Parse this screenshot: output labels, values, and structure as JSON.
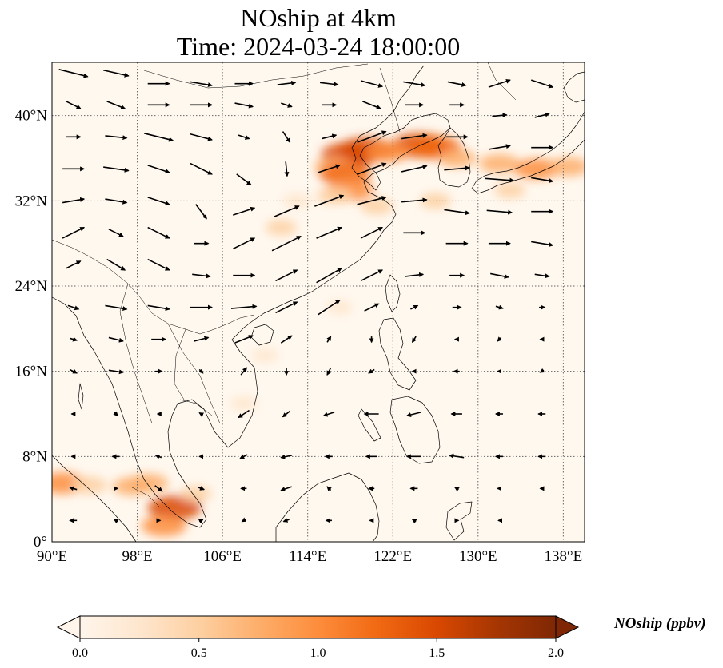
{
  "title": {
    "line1": "NOship at 4km",
    "line2": "Time: 2024-03-24 18:00:00"
  },
  "map": {
    "extent": {
      "lon_min": 90,
      "lon_max": 140,
      "lat_min": 0,
      "lat_max": 45
    },
    "lat_ticks": [
      {
        "value": 0,
        "label": "0°"
      },
      {
        "value": 8,
        "label": "8°N"
      },
      {
        "value": 16,
        "label": "16°N"
      },
      {
        "value": 24,
        "label": "24°N"
      },
      {
        "value": 32,
        "label": "32°N"
      },
      {
        "value": 40,
        "label": "40°N"
      }
    ],
    "lon_ticks": [
      {
        "value": 90,
        "label": "90°E"
      },
      {
        "value": 98,
        "label": "98°E"
      },
      {
        "value": 106,
        "label": "106°E"
      },
      {
        "value": 114,
        "label": "114°E"
      },
      {
        "value": 122,
        "label": "122°E"
      },
      {
        "value": 130,
        "label": "130°E"
      },
      {
        "value": 138,
        "label": "138°E"
      }
    ],
    "gridlines": "dotted",
    "background_color": "#fff8ef",
    "hotspots": [
      {
        "lon": 118.0,
        "lat": 36.3,
        "value": 1.6
      },
      {
        "lon": 119.5,
        "lat": 36.8,
        "value": 1.5
      },
      {
        "lon": 124.5,
        "lat": 37.2,
        "value": 1.5
      },
      {
        "lon": 126.0,
        "lat": 37.0,
        "value": 1.3
      },
      {
        "lon": 121.5,
        "lat": 36.6,
        "value": 1.0
      },
      {
        "lon": 128.0,
        "lat": 36.0,
        "value": 0.7
      },
      {
        "lon": 132.0,
        "lat": 35.5,
        "value": 0.8
      },
      {
        "lon": 135.5,
        "lat": 35.0,
        "value": 1.0
      },
      {
        "lon": 138.5,
        "lat": 35.2,
        "value": 0.8
      },
      {
        "lon": 116.5,
        "lat": 35.2,
        "value": 0.8
      },
      {
        "lon": 117.5,
        "lat": 34.5,
        "value": 1.3
      },
      {
        "lon": 118.0,
        "lat": 33.0,
        "value": 1.1
      },
      {
        "lon": 116.5,
        "lat": 32.5,
        "value": 0.6
      },
      {
        "lon": 113.0,
        "lat": 32.0,
        "value": 0.3
      },
      {
        "lon": 111.5,
        "lat": 29.5,
        "value": 0.4
      },
      {
        "lon": 120.5,
        "lat": 31.5,
        "value": 0.5
      },
      {
        "lon": 126.0,
        "lat": 32.0,
        "value": 0.4
      },
      {
        "lon": 133.0,
        "lat": 33.0,
        "value": 0.4
      },
      {
        "lon": 91.0,
        "lat": 5.5,
        "value": 1.1
      },
      {
        "lon": 93.5,
        "lat": 5.3,
        "value": 0.6
      },
      {
        "lon": 97.5,
        "lat": 5.2,
        "value": 0.7
      },
      {
        "lon": 99.0,
        "lat": 5.5,
        "value": 0.8
      },
      {
        "lon": 101.5,
        "lat": 3.2,
        "value": 1.4
      },
      {
        "lon": 100.5,
        "lat": 1.5,
        "value": 1.0
      },
      {
        "lon": 103.5,
        "lat": 4.5,
        "value": 0.4
      },
      {
        "lon": 108.0,
        "lat": 13.0,
        "value": 0.25
      },
      {
        "lon": 110.0,
        "lat": 17.5,
        "value": 0.2
      },
      {
        "lon": 117.0,
        "lat": 22.0,
        "value": 0.2
      }
    ],
    "wind_vectors": [
      {
        "lon": 92,
        "lat": 44,
        "u": 4,
        "v": -1
      },
      {
        "lon": 96,
        "lat": 44,
        "u": 3.5,
        "v": -0.8
      },
      {
        "lon": 100,
        "lat": 43,
        "u": 3,
        "v": 0
      },
      {
        "lon": 104,
        "lat": 43,
        "u": 3,
        "v": -0.5
      },
      {
        "lon": 108,
        "lat": 43,
        "u": 2.5,
        "v": 0
      },
      {
        "lon": 112,
        "lat": 43,
        "u": 2.5,
        "v": 0.3
      },
      {
        "lon": 116,
        "lat": 43,
        "u": 2.5,
        "v": -0.3
      },
      {
        "lon": 120,
        "lat": 43,
        "u": 3,
        "v": -0.8
      },
      {
        "lon": 124,
        "lat": 43,
        "u": 3,
        "v": -0.5
      },
      {
        "lon": 128,
        "lat": 43,
        "u": 2.5,
        "v": -0.5
      },
      {
        "lon": 132,
        "lat": 43,
        "u": 3,
        "v": 1
      },
      {
        "lon": 136,
        "lat": 43,
        "u": 3,
        "v": -1
      },
      {
        "lon": 92,
        "lat": 41,
        "u": 2,
        "v": -1
      },
      {
        "lon": 96,
        "lat": 41,
        "u": 2.5,
        "v": -1
      },
      {
        "lon": 100,
        "lat": 41,
        "u": 3,
        "v": 0
      },
      {
        "lon": 104,
        "lat": 41,
        "u": 3,
        "v": 0
      },
      {
        "lon": 108,
        "lat": 41,
        "u": 2.5,
        "v": -0.5
      },
      {
        "lon": 112,
        "lat": 41,
        "u": 1.5,
        "v": -0.5
      },
      {
        "lon": 116,
        "lat": 41,
        "u": 2,
        "v": 0
      },
      {
        "lon": 120,
        "lat": 41,
        "u": 2.5,
        "v": -1
      },
      {
        "lon": 124,
        "lat": 41,
        "u": 2.5,
        "v": 0
      },
      {
        "lon": 128,
        "lat": 41,
        "u": 2,
        "v": 0
      },
      {
        "lon": 132,
        "lat": 40,
        "u": 2,
        "v": 0.2
      },
      {
        "lon": 136,
        "lat": 40,
        "u": 2,
        "v": 0.5
      },
      {
        "lon": 92,
        "lat": 38,
        "u": 2,
        "v": 0
      },
      {
        "lon": 96,
        "lat": 38,
        "u": 3,
        "v": -0.3
      },
      {
        "lon": 100,
        "lat": 38,
        "u": 4,
        "v": -1
      },
      {
        "lon": 104,
        "lat": 38,
        "u": 3,
        "v": -0.8
      },
      {
        "lon": 108,
        "lat": 38,
        "u": 1.5,
        "v": -0.5
      },
      {
        "lon": 112,
        "lat": 38,
        "u": 1,
        "v": -1.5
      },
      {
        "lon": 116,
        "lat": 38,
        "u": 2,
        "v": 0.5
      },
      {
        "lon": 120,
        "lat": 38,
        "u": 4,
        "v": 1.5
      },
      {
        "lon": 124,
        "lat": 38,
        "u": 3.5,
        "v": 0.5
      },
      {
        "lon": 128,
        "lat": 38,
        "u": 3,
        "v": 0
      },
      {
        "lon": 132,
        "lat": 37,
        "u": 3,
        "v": 0.5
      },
      {
        "lon": 136,
        "lat": 37,
        "u": 3,
        "v": 0
      },
      {
        "lon": 92,
        "lat": 35,
        "u": 3,
        "v": 0
      },
      {
        "lon": 96,
        "lat": 35,
        "u": 3.5,
        "v": -0.5
      },
      {
        "lon": 100,
        "lat": 35,
        "u": 3,
        "v": -1
      },
      {
        "lon": 104,
        "lat": 35,
        "u": 3,
        "v": -1.5
      },
      {
        "lon": 108,
        "lat": 34,
        "u": 2,
        "v": -1.5
      },
      {
        "lon": 112,
        "lat": 35,
        "u": 0.2,
        "v": -2
      },
      {
        "lon": 116,
        "lat": 35,
        "u": 3,
        "v": 1
      },
      {
        "lon": 120,
        "lat": 35,
        "u": 4,
        "v": 1.5
      },
      {
        "lon": 124,
        "lat": 35,
        "u": 3.5,
        "v": 0.8
      },
      {
        "lon": 128,
        "lat": 35,
        "u": 3.5,
        "v": 0.3
      },
      {
        "lon": 132,
        "lat": 34,
        "u": 4,
        "v": -0.3
      },
      {
        "lon": 136,
        "lat": 34,
        "u": 3,
        "v": -0.5
      },
      {
        "lon": 92,
        "lat": 32,
        "u": 3,
        "v": 0.5
      },
      {
        "lon": 96,
        "lat": 32,
        "u": 3,
        "v": -0.5
      },
      {
        "lon": 100,
        "lat": 32,
        "u": 3,
        "v": -1
      },
      {
        "lon": 104,
        "lat": 31,
        "u": 1.5,
        "v": -2
      },
      {
        "lon": 108,
        "lat": 31,
        "u": 3,
        "v": 1
      },
      {
        "lon": 112,
        "lat": 31,
        "u": 3.5,
        "v": 1.5
      },
      {
        "lon": 116,
        "lat": 32,
        "u": 4,
        "v": 1.5
      },
      {
        "lon": 120,
        "lat": 32,
        "u": 4,
        "v": 1
      },
      {
        "lon": 124,
        "lat": 32,
        "u": 3.5,
        "v": 0.3
      },
      {
        "lon": 128,
        "lat": 31,
        "u": 3.5,
        "v": -0.5
      },
      {
        "lon": 132,
        "lat": 31,
        "u": 3.5,
        "v": -0.3
      },
      {
        "lon": 136,
        "lat": 31,
        "u": 3,
        "v": 0
      },
      {
        "lon": 92,
        "lat": 29,
        "u": 3,
        "v": 1.5
      },
      {
        "lon": 96,
        "lat": 29,
        "u": 2,
        "v": -1
      },
      {
        "lon": 100,
        "lat": 29,
        "u": 3,
        "v": -1.5
      },
      {
        "lon": 104,
        "lat": 28,
        "u": 2,
        "v": 0
      },
      {
        "lon": 108,
        "lat": 28,
        "u": 3,
        "v": 1.5
      },
      {
        "lon": 112,
        "lat": 28,
        "u": 4,
        "v": 2
      },
      {
        "lon": 116,
        "lat": 29,
        "u": 3.5,
        "v": 1.5
      },
      {
        "lon": 120,
        "lat": 29,
        "u": 3,
        "v": 1.5
      },
      {
        "lon": 124,
        "lat": 29,
        "u": 3,
        "v": 0
      },
      {
        "lon": 128,
        "lat": 28,
        "u": 3,
        "v": 0
      },
      {
        "lon": 132,
        "lat": 28,
        "u": 3,
        "v": 0
      },
      {
        "lon": 136,
        "lat": 28,
        "u": 3,
        "v": -0.5
      },
      {
        "lon": 92,
        "lat": 26,
        "u": 2,
        "v": 1
      },
      {
        "lon": 96,
        "lat": 26,
        "u": 2.5,
        "v": -1.5
      },
      {
        "lon": 100,
        "lat": 26,
        "u": 3,
        "v": -1.5
      },
      {
        "lon": 104,
        "lat": 25,
        "u": 2.5,
        "v": -0.3
      },
      {
        "lon": 108,
        "lat": 25,
        "u": 3,
        "v": 0
      },
      {
        "lon": 112,
        "lat": 25,
        "u": 3,
        "v": 1.5
      },
      {
        "lon": 116,
        "lat": 25,
        "u": 3.5,
        "v": 2
      },
      {
        "lon": 120,
        "lat": 25,
        "u": 3,
        "v": 1.5
      },
      {
        "lon": 124,
        "lat": 25,
        "u": 2.5,
        "v": 0.3
      },
      {
        "lon": 128,
        "lat": 25,
        "u": 2,
        "v": 0
      },
      {
        "lon": 132,
        "lat": 25,
        "u": 2.5,
        "v": -0.5
      },
      {
        "lon": 136,
        "lat": 25,
        "u": 2,
        "v": -0.3
      },
      {
        "lon": 92,
        "lat": 22,
        "u": 1.5,
        "v": -0.5
      },
      {
        "lon": 96,
        "lat": 22,
        "u": 3,
        "v": -0.5
      },
      {
        "lon": 100,
        "lat": 22,
        "u": 3,
        "v": -0.5
      },
      {
        "lon": 104,
        "lat": 22,
        "u": 3,
        "v": 0
      },
      {
        "lon": 108,
        "lat": 22,
        "u": 3.5,
        "v": 0.3
      },
      {
        "lon": 112,
        "lat": 22,
        "u": 3,
        "v": 1.5
      },
      {
        "lon": 116,
        "lat": 22,
        "u": 3,
        "v": 2
      },
      {
        "lon": 120,
        "lat": 22,
        "u": 2,
        "v": 1
      },
      {
        "lon": 124,
        "lat": 22,
        "u": 1,
        "v": 0.5
      },
      {
        "lon": 128,
        "lat": 22,
        "u": 1.2,
        "v": 0
      },
      {
        "lon": 132,
        "lat": 22,
        "u": 1,
        "v": -0.3
      },
      {
        "lon": 136,
        "lat": 22,
        "u": 0.8,
        "v": 0
      },
      {
        "lon": 92,
        "lat": 19,
        "u": 1,
        "v": -0.3
      },
      {
        "lon": 96,
        "lat": 19,
        "u": 2,
        "v": -0.5
      },
      {
        "lon": 100,
        "lat": 19,
        "u": 2,
        "v": 0
      },
      {
        "lon": 104,
        "lat": 19,
        "u": 2,
        "v": 0.5
      },
      {
        "lon": 108,
        "lat": 19,
        "u": 2.5,
        "v": 1
      },
      {
        "lon": 112,
        "lat": 19,
        "u": 1.5,
        "v": 1
      },
      {
        "lon": 116,
        "lat": 19,
        "u": 0.5,
        "v": 0.8
      },
      {
        "lon": 120,
        "lat": 19,
        "u": 0,
        "v": -0.8
      },
      {
        "lon": 124,
        "lat": 19,
        "u": -0.5,
        "v": -0.8
      },
      {
        "lon": 128,
        "lat": 19,
        "u": -0.5,
        "v": 0
      },
      {
        "lon": 132,
        "lat": 19,
        "u": -0.5,
        "v": -0.5
      },
      {
        "lon": 136,
        "lat": 19,
        "u": -0.5,
        "v": 0
      },
      {
        "lon": 92,
        "lat": 16,
        "u": 1,
        "v": -0.5
      },
      {
        "lon": 96,
        "lat": 16,
        "u": 2,
        "v": -0.3
      },
      {
        "lon": 100,
        "lat": 16,
        "u": 1,
        "v": 0
      },
      {
        "lon": 104,
        "lat": 16,
        "u": 0.5,
        "v": -0.5
      },
      {
        "lon": 108,
        "lat": 16,
        "u": 0.8,
        "v": 1
      },
      {
        "lon": 112,
        "lat": 16,
        "u": 0,
        "v": -1
      },
      {
        "lon": 116,
        "lat": 16,
        "u": -0.5,
        "v": -1
      },
      {
        "lon": 120,
        "lat": 16,
        "u": -0.8,
        "v": -0.5
      },
      {
        "lon": 124,
        "lat": 16,
        "u": -0.5,
        "v": 0
      },
      {
        "lon": 128,
        "lat": 16,
        "u": -0.8,
        "v": 0
      },
      {
        "lon": 132,
        "lat": 16,
        "u": -0.5,
        "v": 0
      },
      {
        "lon": 136,
        "lat": 16,
        "u": -0.5,
        "v": -0.3
      },
      {
        "lon": 92,
        "lat": 12,
        "u": -0.5,
        "v": 0
      },
      {
        "lon": 96,
        "lat": 12,
        "u": 0.5,
        "v": -0.5
      },
      {
        "lon": 100,
        "lat": 12,
        "u": -0.3,
        "v": 0
      },
      {
        "lon": 104,
        "lat": 12,
        "u": -0.5,
        "v": 0.3
      },
      {
        "lon": 108,
        "lat": 12,
        "u": -1.5,
        "v": -1
      },
      {
        "lon": 112,
        "lat": 12,
        "u": -1,
        "v": -0.8
      },
      {
        "lon": 116,
        "lat": 12,
        "u": -1.5,
        "v": -0.5
      },
      {
        "lon": 120,
        "lat": 12,
        "u": -2,
        "v": 0
      },
      {
        "lon": 124,
        "lat": 12,
        "u": -2,
        "v": -0.5
      },
      {
        "lon": 128,
        "lat": 12,
        "u": -1.5,
        "v": 0
      },
      {
        "lon": 132,
        "lat": 12,
        "u": -1,
        "v": 0
      },
      {
        "lon": 136,
        "lat": 12,
        "u": -1,
        "v": 0
      },
      {
        "lon": 92,
        "lat": 8,
        "u": -0.5,
        "v": 0
      },
      {
        "lon": 96,
        "lat": 8,
        "u": -1,
        "v": 0
      },
      {
        "lon": 100,
        "lat": 8,
        "u": -0.8,
        "v": 0.3
      },
      {
        "lon": 104,
        "lat": 8,
        "u": -0.5,
        "v": 0
      },
      {
        "lon": 108,
        "lat": 8,
        "u": -1,
        "v": -0.5
      },
      {
        "lon": 112,
        "lat": 8,
        "u": -1.5,
        "v": -0.3
      },
      {
        "lon": 116,
        "lat": 8,
        "u": -1,
        "v": 0
      },
      {
        "lon": 120,
        "lat": 8,
        "u": -1.5,
        "v": 0
      },
      {
        "lon": 124,
        "lat": 8,
        "u": -2,
        "v": 0
      },
      {
        "lon": 128,
        "lat": 8,
        "u": -2,
        "v": 0.3
      },
      {
        "lon": 132,
        "lat": 8,
        "u": -1,
        "v": 0
      },
      {
        "lon": 136,
        "lat": 8,
        "u": -1,
        "v": 0
      },
      {
        "lon": 92,
        "lat": 5,
        "u": -1,
        "v": 0.3
      },
      {
        "lon": 96,
        "lat": 5,
        "u": 0.5,
        "v": 0
      },
      {
        "lon": 100,
        "lat": 5,
        "u": 1,
        "v": -0.8
      },
      {
        "lon": 104,
        "lat": 5,
        "u": 0.8,
        "v": -0.3
      },
      {
        "lon": 108,
        "lat": 5,
        "u": -0.8,
        "v": 0
      },
      {
        "lon": 112,
        "lat": 5,
        "u": -1.5,
        "v": -0.5
      },
      {
        "lon": 116,
        "lat": 5,
        "u": -0.5,
        "v": 0.5
      },
      {
        "lon": 120,
        "lat": 5,
        "u": -0.8,
        "v": 0
      },
      {
        "lon": 124,
        "lat": 5,
        "u": -1,
        "v": 0
      },
      {
        "lon": 128,
        "lat": 5,
        "u": -0.5,
        "v": 0.3
      },
      {
        "lon": 132,
        "lat": 5,
        "u": -0.5,
        "v": 0
      },
      {
        "lon": 136,
        "lat": 5,
        "u": -0.5,
        "v": 0
      },
      {
        "lon": 92,
        "lat": 2,
        "u": -1,
        "v": 0
      },
      {
        "lon": 96,
        "lat": 2,
        "u": -0.5,
        "v": 0.3
      },
      {
        "lon": 100,
        "lat": 2,
        "u": 0.5,
        "v": 0
      },
      {
        "lon": 104,
        "lat": 2,
        "u": 0.5,
        "v": 0.3
      },
      {
        "lon": 108,
        "lat": 2,
        "u": -0.5,
        "v": -0.3
      },
      {
        "lon": 112,
        "lat": 2,
        "u": -0.8,
        "v": -0.3
      },
      {
        "lon": 116,
        "lat": 2,
        "u": -0.8,
        "v": 0
      },
      {
        "lon": 120,
        "lat": 2,
        "u": -0.5,
        "v": 0
      },
      {
        "lon": 124,
        "lat": 2,
        "u": -0.5,
        "v": 0.3
      },
      {
        "lon": 128,
        "lat": 2,
        "u": 0.5,
        "v": 0
      },
      {
        "lon": 132,
        "lat": 2,
        "u": -0.3,
        "v": 0
      }
    ]
  },
  "colorbar": {
    "label": "NOship (ppbv)",
    "min": 0.0,
    "max": 2.0,
    "extend": "both",
    "colormap": [
      "#fff5eb",
      "#fee6ce",
      "#fdd0a2",
      "#fdae6b",
      "#fd8d3c",
      "#f16913",
      "#d94801",
      "#a63603",
      "#7f2704"
    ],
    "ticks": [
      {
        "value": 0.0,
        "label": "0.0"
      },
      {
        "value": 0.5,
        "label": "0.5"
      },
      {
        "value": 1.0,
        "label": "1.0"
      },
      {
        "value": 1.5,
        "label": "1.5"
      },
      {
        "value": 2.0,
        "label": "2.0"
      }
    ]
  }
}
